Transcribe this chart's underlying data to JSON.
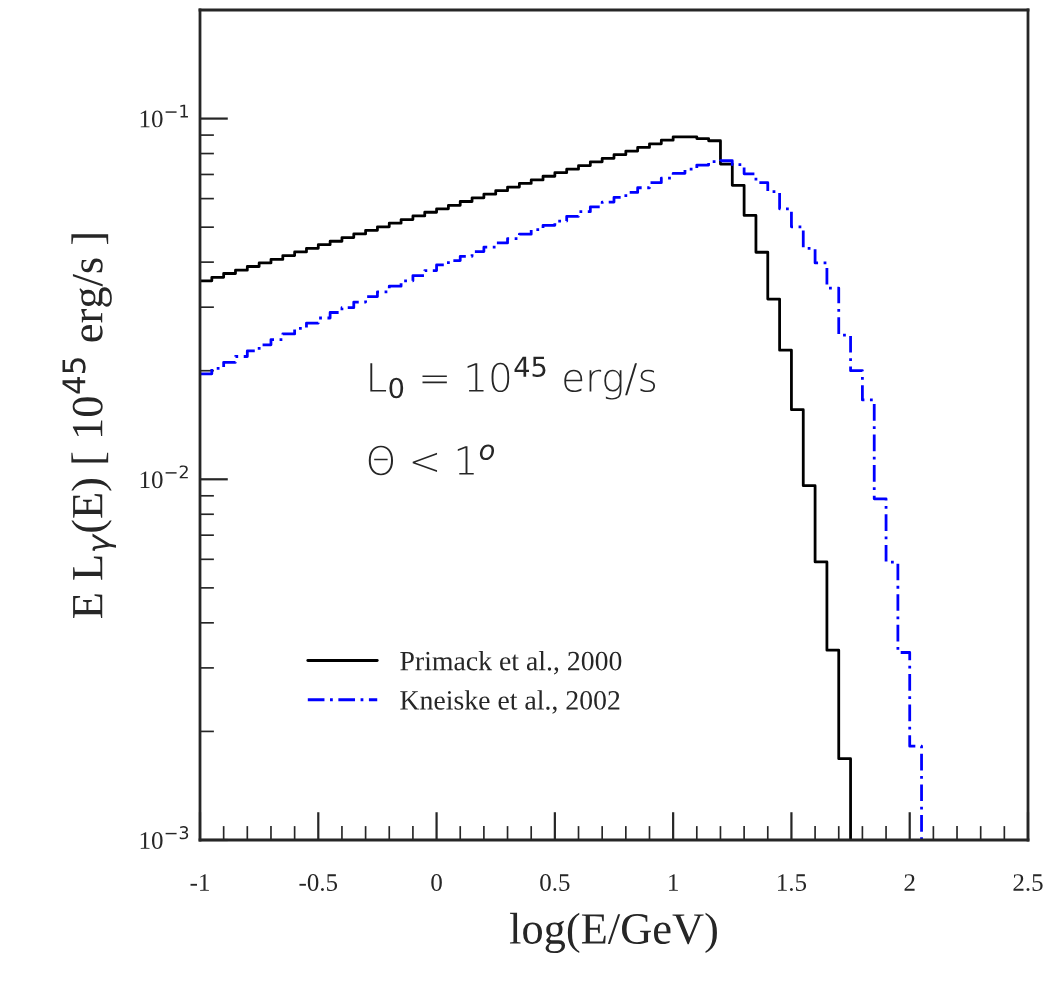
{
  "chart_data": {
    "type": "step",
    "xlabel": "log(E/GeV)",
    "ylabel": "E L$_{γ}$(E) [ 10$^{45}$ erg/s ]",
    "log": "y",
    "xlim": [
      -1,
      2.5
    ],
    "ylim": [
      0.001,
      0.2
    ],
    "xticks": [
      -1,
      -0.5,
      0,
      0.5,
      1,
      1.5,
      2,
      2.5
    ],
    "yticks": [
      {
        "value": 0.001,
        "label": "10$^{−3}$"
      },
      {
        "value": 0.01,
        "label": "10$^{−2}$"
      },
      {
        "value": 0.1,
        "label": "10$^{−1}$"
      }
    ],
    "grid": false,
    "legend": "bottom left",
    "annotations": [
      "L$_{0}$ = 10$^{45}$ erg/s",
      "Θ < 1$^{o}$"
    ],
    "series": [
      {
        "name": "Primack et al., 2000",
        "color": "#000000",
        "line_style": "solid",
        "x": [
          -1.0,
          -0.95,
          -0.9,
          -0.85,
          -0.8,
          -0.75,
          -0.7,
          -0.65,
          -0.6,
          -0.55,
          -0.5,
          -0.45,
          -0.4,
          -0.35,
          -0.3,
          -0.25,
          -0.2,
          -0.15,
          -0.1,
          -0.05,
          0.0,
          0.05,
          0.1,
          0.15,
          0.2,
          0.25,
          0.3,
          0.35,
          0.4,
          0.45,
          0.5,
          0.55,
          0.6,
          0.65,
          0.7,
          0.75,
          0.8,
          0.85,
          0.9,
          0.95,
          1.0,
          1.05,
          1.1,
          1.15,
          1.2,
          1.25,
          1.3,
          1.35,
          1.4,
          1.45,
          1.5,
          1.55,
          1.6,
          1.65,
          1.7,
          1.75
        ],
        "values": [
          0.0355,
          0.0363,
          0.0372,
          0.038,
          0.0389,
          0.0398,
          0.0407,
          0.0417,
          0.0427,
          0.0437,
          0.0447,
          0.0457,
          0.0468,
          0.0479,
          0.049,
          0.0501,
          0.0513,
          0.0525,
          0.0537,
          0.055,
          0.0562,
          0.0575,
          0.0589,
          0.0603,
          0.0617,
          0.0631,
          0.0646,
          0.0661,
          0.0676,
          0.0692,
          0.0708,
          0.0724,
          0.0741,
          0.0759,
          0.0776,
          0.0794,
          0.0813,
          0.0832,
          0.0851,
          0.0871,
          0.089,
          0.089,
          0.088,
          0.0868,
          0.0748,
          0.0653,
          0.0539,
          0.0426,
          0.0316,
          0.0228,
          0.0156,
          0.0096,
          0.0059,
          0.00336,
          0.00168,
          0.001
        ]
      },
      {
        "name": "Kneiske et al., 2002",
        "color": "#0000ff",
        "line_style": "dashdot",
        "x": [
          -1.0,
          -0.95,
          -0.9,
          -0.85,
          -0.8,
          -0.75,
          -0.7,
          -0.65,
          -0.6,
          -0.55,
          -0.5,
          -0.45,
          -0.4,
          -0.35,
          -0.3,
          -0.25,
          -0.2,
          -0.15,
          -0.1,
          -0.05,
          0.0,
          0.05,
          0.1,
          0.15,
          0.2,
          0.25,
          0.3,
          0.35,
          0.4,
          0.45,
          0.5,
          0.55,
          0.6,
          0.65,
          0.7,
          0.75,
          0.8,
          0.85,
          0.9,
          0.95,
          1.0,
          1.05,
          1.1,
          1.15,
          1.2,
          1.25,
          1.3,
          1.35,
          1.4,
          1.45,
          1.5,
          1.55,
          1.6,
          1.65,
          1.7,
          1.75,
          1.8,
          1.85,
          1.9,
          1.95,
          2.0,
          2.05
        ],
        "values": [
          0.0196,
          0.0203,
          0.0211,
          0.0219,
          0.0227,
          0.0236,
          0.0244,
          0.0253,
          0.0262,
          0.0271,
          0.028,
          0.029,
          0.0299,
          0.031,
          0.0321,
          0.0331,
          0.0343,
          0.0355,
          0.0367,
          0.0379,
          0.0393,
          0.0404,
          0.0415,
          0.0428,
          0.044,
          0.0452,
          0.0465,
          0.0478,
          0.0492,
          0.0506,
          0.052,
          0.0536,
          0.0552,
          0.0569,
          0.0587,
          0.0605,
          0.0624,
          0.0643,
          0.0664,
          0.0684,
          0.0705,
          0.0724,
          0.0743,
          0.076,
          0.0764,
          0.0745,
          0.0703,
          0.0664,
          0.0627,
          0.0562,
          0.0501,
          0.0437,
          0.0398,
          0.0339,
          0.0251,
          0.02,
          0.0166,
          0.00883,
          0.00589,
          0.00331,
          0.00182,
          0.001
        ]
      }
    ]
  }
}
